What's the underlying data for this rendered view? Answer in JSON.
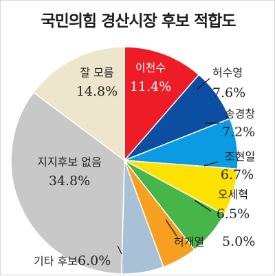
{
  "title": "국민의힘 경산시장 후보 적합도",
  "chart_data": {
    "type": "pie",
    "title": "국민의힘 경산시장 후보 적합도",
    "slices": [
      {
        "label": "이천수",
        "value": 11.4,
        "value_text": "11.4%",
        "color": "#ee1c25"
      },
      {
        "label": "허수영",
        "value": 7.6,
        "value_text": "7.6%",
        "color": "#0b4ea2"
      },
      {
        "label": "송경창",
        "value": 7.2,
        "value_text": "7.2%",
        "color": "#0a9be3"
      },
      {
        "label": "조현일",
        "value": 6.7,
        "value_text": "6.7%",
        "color": "#fde100"
      },
      {
        "label": "오세혁",
        "value": 6.5,
        "value_text": "6.5%",
        "color": "#46b649"
      },
      {
        "label": "허개열",
        "value": 5.0,
        "value_text": "5.0%",
        "color": "#f7a020"
      },
      {
        "label": "기타 후보",
        "value": 6.0,
        "value_text": "6.0%",
        "color": "#a7c2d6"
      },
      {
        "label": "지지후보 없음",
        "value": 34.8,
        "value_text": "34.8%",
        "color": "#c8c8c8"
      },
      {
        "label": "잘 모름",
        "value": 14.8,
        "value_text": "14.8%",
        "color": "#ede6cc"
      }
    ]
  }
}
